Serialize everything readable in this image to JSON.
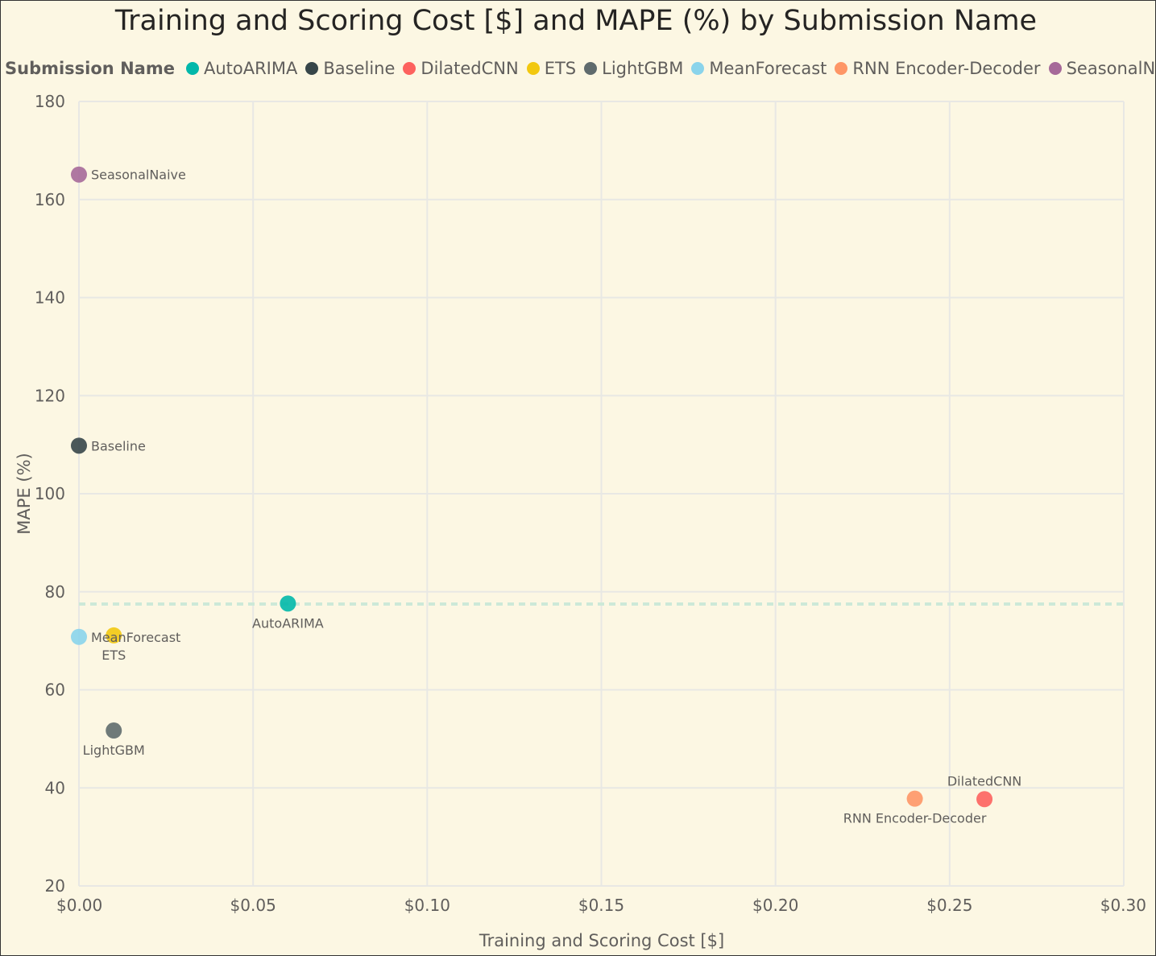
{
  "chart_data": {
    "type": "scatter",
    "title": "Training and Scoring Cost [$] and MAPE (%) by Submission Name",
    "xlabel": "Training and Scoring Cost [$]",
    "ylabel": "MAPE (%)",
    "xlim": [
      0,
      0.3
    ],
    "ylim": [
      20,
      180
    ],
    "x_ticks": [
      "$0.00",
      "$0.05",
      "$0.10",
      "$0.15",
      "$0.20",
      "$0.25",
      "$0.30"
    ],
    "y_ticks": [
      "180",
      "160",
      "140",
      "120",
      "100",
      "80",
      "60",
      "40",
      "20"
    ],
    "grid": true,
    "legend_title": "Submission Name",
    "legend_position": "top",
    "average_line": {
      "y": 77.5,
      "color": "#cde9d8",
      "style": "dashed"
    },
    "series": [
      {
        "name": "AutoARIMA",
        "x": 0.06,
        "y": 77.6,
        "color": "#01b8aa"
      },
      {
        "name": "Baseline",
        "x": 0.0,
        "y": 109.8,
        "color": "#374649"
      },
      {
        "name": "DilatedCNN",
        "x": 0.26,
        "y": 37.7,
        "color": "#fd625e"
      },
      {
        "name": "ETS",
        "x": 0.01,
        "y": 71.1,
        "color": "#f2c80f"
      },
      {
        "name": "LightGBM",
        "x": 0.01,
        "y": 51.7,
        "color": "#5f6b6d"
      },
      {
        "name": "MeanForecast",
        "x": 0.0,
        "y": 70.8,
        "color": "#8ad4eb"
      },
      {
        "name": "RNN Encoder-Decoder",
        "x": 0.24,
        "y": 37.8,
        "color": "#fe9666"
      },
      {
        "name": "SeasonalNaive",
        "x": 0.0,
        "y": 165.1,
        "color": "#a66999"
      }
    ]
  }
}
